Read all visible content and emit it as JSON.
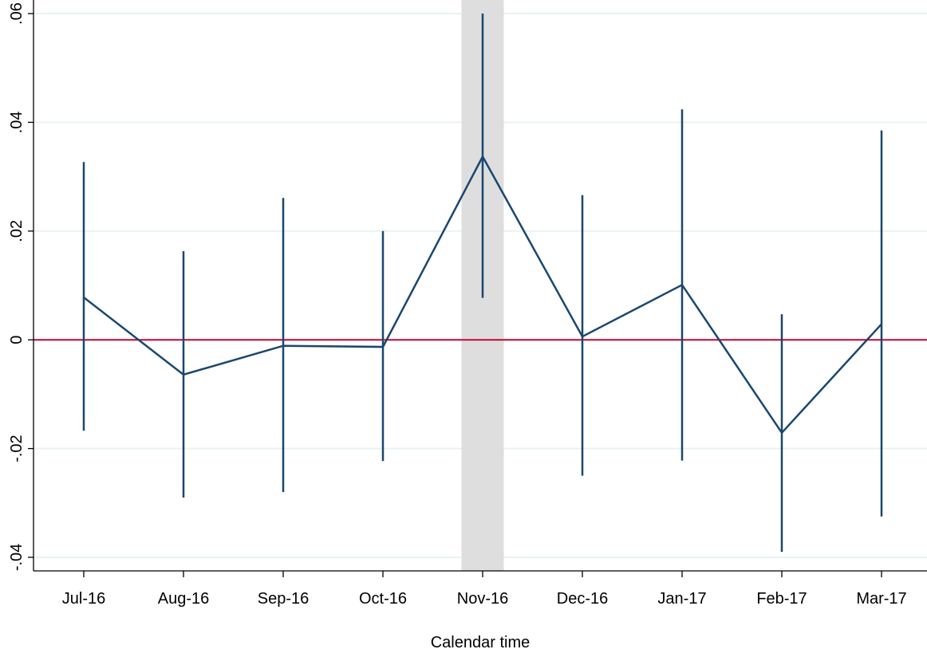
{
  "chart_data": {
    "type": "line",
    "title": "",
    "xlabel": "Calendar time",
    "ylabel": "",
    "categories": [
      "Jul-16",
      "Aug-16",
      "Sep-16",
      "Oct-16",
      "Nov-16",
      "Dec-16",
      "Jan-17",
      "Feb-17",
      "Mar-17"
    ],
    "series": [
      {
        "values": [
          0.0078,
          -0.0064,
          -0.0011,
          -0.0013,
          0.0337,
          0.0006,
          0.0101,
          -0.0171,
          0.0029
        ],
        "ci_low": [
          -0.0167,
          -0.029,
          -0.028,
          -0.0223,
          0.0077,
          -0.025,
          -0.0222,
          -0.039,
          -0.0325
        ],
        "ci_high": [
          0.0327,
          0.0163,
          0.0261,
          0.02,
          0.06,
          0.0266,
          0.0424,
          0.0047,
          0.0385
        ],
        "color": "#1a476f"
      }
    ],
    "yticks": [
      -0.04,
      -0.02,
      0,
      0.02,
      0.04,
      0.06
    ],
    "ytick_labels": [
      "-.04",
      "-.02",
      "0",
      ".02",
      ".04",
      ".06"
    ],
    "ylim": [
      -0.0425,
      0.0625
    ],
    "reference_line": {
      "y": 0,
      "color": "#c10534"
    },
    "highlight_category": "Nov-16",
    "highlight_color": "#dedede",
    "grid": true,
    "grid_color": "#eaf2f3",
    "legend": "none"
  }
}
